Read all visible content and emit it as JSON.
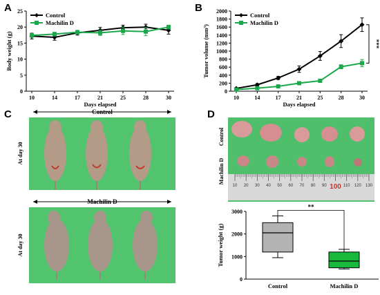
{
  "panel_labels": {
    "a": "A",
    "b": "B",
    "c": "C",
    "d": "D"
  },
  "colors": {
    "control": "#000000",
    "machilin": "#1aa84a",
    "photo_bg": "#4fc06c",
    "box_control": "#b3b3b3",
    "box_machilin": "#17b83c"
  },
  "photo_c": {
    "top_group": "Control",
    "bottom_group": "Machilin D",
    "side_label_top": "At day  30",
    "side_label_bottom": "At day  30"
  },
  "photo_d": {
    "row_top": "Control",
    "row_bottom": "Machilin D",
    "ruler_ticks": [
      "10",
      "20",
      "30",
      "40",
      "50",
      "60",
      "70",
      "80",
      "90",
      "100",
      "110",
      "120",
      "130"
    ],
    "ruler_highlight": "100"
  },
  "chart_data": [
    {
      "id": "A",
      "type": "line",
      "xlabel": "Days elapsed",
      "ylabel": "Body weight (g)",
      "categories": [
        "10",
        "14",
        "17",
        "21",
        "25",
        "28",
        "30"
      ],
      "ylim": [
        0,
        25
      ],
      "yticks": [
        "0",
        "5",
        "10",
        "15",
        "20",
        "25"
      ],
      "legend": "top-left",
      "series": [
        {
          "name": "Control",
          "values": [
            17.2,
            16.8,
            18.2,
            19.0,
            19.8,
            20.0,
            19.0
          ],
          "err": [
            0.9,
            0.9,
            0.7,
            0.9,
            0.8,
            0.9,
            1.2
          ]
        },
        {
          "name": "Machilin D",
          "values": [
            17.4,
            17.8,
            18.4,
            18.2,
            18.8,
            18.6,
            20.0
          ],
          "err": [
            0.6,
            0.6,
            0.6,
            0.8,
            1.1,
            1.3,
            0.6
          ]
        }
      ]
    },
    {
      "id": "B",
      "type": "line",
      "xlabel": "Days elapsed",
      "ylabel": "Tumor volume (mm³)",
      "categories": [
        "10",
        "14",
        "17",
        "21",
        "25",
        "28",
        "30"
      ],
      "ylim": [
        0,
        2000
      ],
      "yticks": [
        "0",
        "200",
        "400",
        "600",
        "800",
        "1000",
        "1200",
        "1400",
        "1600",
        "1800",
        "2000"
      ],
      "legend": "top-left",
      "annotation": "***",
      "series": [
        {
          "name": "Control",
          "values": [
            70,
            160,
            330,
            550,
            880,
            1250,
            1660
          ],
          "err": [
            20,
            30,
            40,
            80,
            110,
            160,
            170
          ]
        },
        {
          "name": "Machilin D",
          "values": [
            40,
            75,
            120,
            200,
            260,
            610,
            700
          ],
          "err": [
            10,
            15,
            20,
            25,
            30,
            50,
            90
          ]
        }
      ]
    },
    {
      "id": "D",
      "type": "box",
      "xlabel": "",
      "ylabel": "Tumor weight (g)",
      "ylim": [
        0,
        3000
      ],
      "yticks": [
        "0",
        "1000",
        "2000",
        "3000"
      ],
      "annotation": "**",
      "groups": [
        {
          "name": "Control",
          "min": 950,
          "q1": 1200,
          "median": 2050,
          "q3": 2500,
          "max": 2800
        },
        {
          "name": "Machilin D",
          "min": 450,
          "q1": 500,
          "median": 800,
          "q3": 1200,
          "max": 1320
        }
      ]
    }
  ]
}
